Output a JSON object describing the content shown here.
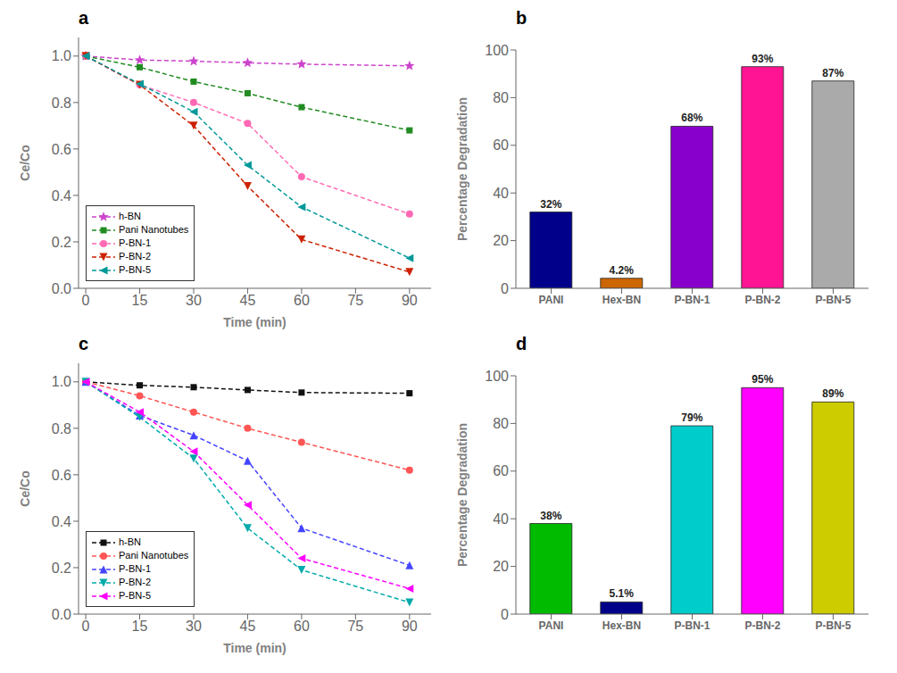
{
  "chart_data": [
    {
      "type": "line",
      "title": "a",
      "xlabel": "Time (min)",
      "ylabel": "Ce/Co",
      "x": [
        0,
        15,
        30,
        45,
        60,
        90
      ],
      "xlim": [
        -2,
        96
      ],
      "xticks": [
        0,
        15,
        30,
        45,
        60,
        75,
        90
      ],
      "ylim": [
        0.0,
        1.08
      ],
      "yticks": [
        {
          "value": 0.0,
          "label": "0.0"
        },
        {
          "value": 0.2,
          "label": "0.2"
        },
        {
          "value": 0.4,
          "label": "0.4"
        },
        {
          "value": 0.6,
          "label": "0.6"
        },
        {
          "value": 0.8,
          "label": "0.8"
        },
        {
          "value": 1.0,
          "label": "1.0"
        }
      ],
      "grid": false,
      "legend": "lower left",
      "series": [
        {
          "name": "h-BN",
          "color": "#CC44CC",
          "marker": "star",
          "line_style": "dashed",
          "values": [
            1.0,
            0.983,
            0.978,
            0.971,
            0.965,
            0.958
          ]
        },
        {
          "name": "Pani Nanotubes",
          "color": "#228B22",
          "marker": "square",
          "line_style": "dashed",
          "values": [
            1.0,
            0.952,
            0.89,
            0.84,
            0.78,
            0.68
          ]
        },
        {
          "name": "P-BN-1",
          "color": "#FF69B4",
          "marker": "circle",
          "line_style": "dashed",
          "values": [
            1.0,
            0.876,
            0.8,
            0.71,
            0.48,
            0.32
          ]
        },
        {
          "name": "P-BN-2",
          "color": "#CC2200",
          "marker": "triangle-down",
          "line_style": "dashed",
          "values": [
            1.0,
            0.876,
            0.7,
            0.44,
            0.21,
            0.07
          ]
        },
        {
          "name": "P-BN-5",
          "color": "#009999",
          "marker": "triangle-left",
          "line_style": "dashed",
          "values": [
            1.0,
            0.88,
            0.76,
            0.53,
            0.35,
            0.13
          ]
        }
      ]
    },
    {
      "type": "bar",
      "title": "b",
      "ylabel": "Percentage Degradation",
      "categories": [
        "PANI",
        "Hex-BN",
        "P-BN-1",
        "P-BN-2",
        "P-BN-5"
      ],
      "values": [
        32,
        4.2,
        68,
        93,
        87
      ],
      "value_labels": [
        "32%",
        "4.2%",
        "68%",
        "93%",
        "87%"
      ],
      "colors": [
        "#00008B",
        "#CC6600",
        "#8800CC",
        "#FF1493",
        "#AAAAAA"
      ],
      "ylim": [
        0,
        100
      ],
      "yticks": [
        0,
        20,
        40,
        60,
        80,
        100
      ],
      "data_labels": true,
      "grid": false
    },
    {
      "type": "line",
      "title": "c",
      "xlabel": "Time (min)",
      "ylabel": "Ce/Co",
      "x": [
        0,
        15,
        30,
        45,
        60,
        90
      ],
      "xlim": [
        -2,
        96
      ],
      "xticks": [
        0,
        15,
        30,
        45,
        60,
        75,
        90
      ],
      "ylim": [
        0.0,
        1.08
      ],
      "yticks": [
        {
          "value": 0.0,
          "label": "0.0"
        },
        {
          "value": 0.2,
          "label": "0.2"
        },
        {
          "value": 0.4,
          "label": "0.4"
        },
        {
          "value": 0.6,
          "label": "0.6"
        },
        {
          "value": 0.8,
          "label": "0.8"
        },
        {
          "value": 1.0,
          "label": "1.0"
        }
      ],
      "grid": false,
      "legend": "lower left",
      "series": [
        {
          "name": "h-BN",
          "color": "#111111",
          "marker": "square",
          "line_style": "dashed",
          "values": [
            1.0,
            0.985,
            0.977,
            0.965,
            0.954,
            0.951
          ]
        },
        {
          "name": "Pani Nanotubes",
          "color": "#FF5555",
          "marker": "circle",
          "line_style": "dashed",
          "values": [
            1.0,
            0.94,
            0.87,
            0.8,
            0.74,
            0.62
          ]
        },
        {
          "name": "P-BN-1",
          "color": "#4444FF",
          "marker": "triangle-up",
          "line_style": "dashed",
          "values": [
            1.0,
            0.855,
            0.77,
            0.66,
            0.37,
            0.21
          ]
        },
        {
          "name": "P-BN-2",
          "color": "#00AAAA",
          "marker": "triangle-down",
          "line_style": "dashed",
          "values": [
            1.0,
            0.848,
            0.67,
            0.37,
            0.19,
            0.05
          ]
        },
        {
          "name": "P-BN-5",
          "color": "#FF00FF",
          "marker": "triangle-left",
          "line_style": "dashed",
          "values": [
            1.0,
            0.87,
            0.7,
            0.47,
            0.24,
            0.11
          ]
        }
      ]
    },
    {
      "type": "bar",
      "title": "d",
      "ylabel": "Percentage Degradation",
      "categories": [
        "PANI",
        "Hex-BN",
        "P-BN-1",
        "P-BN-2",
        "P-BN-5"
      ],
      "values": [
        38,
        5.1,
        79,
        95,
        89
      ],
      "value_labels": [
        "38%",
        "5.1%",
        "79%",
        "95%",
        "89%"
      ],
      "colors": [
        "#00BB00",
        "#000088",
        "#00CCCC",
        "#FF00FF",
        "#CCCC00"
      ],
      "ylim": [
        0,
        100
      ],
      "yticks": [
        0,
        20,
        40,
        60,
        80,
        100
      ],
      "data_labels": true,
      "grid": false
    }
  ]
}
